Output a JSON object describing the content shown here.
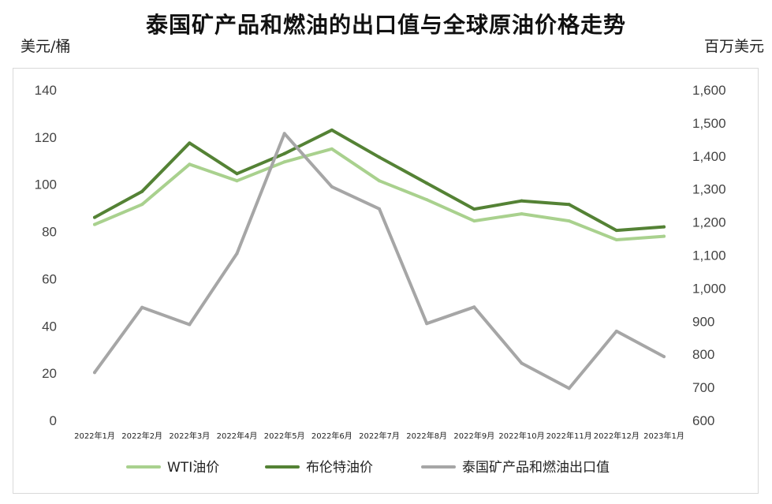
{
  "chart_data": {
    "type": "line",
    "title": "泰国矿产品和燃油的出口值与全球原油价格走势",
    "left_axis_label": "美元/桶",
    "right_axis_label": "百万美元",
    "categories": [
      "2022年1月",
      "2022年2月",
      "2022年3月",
      "2022年4月",
      "2022年5月",
      "2022年6月",
      "2022年7月",
      "2022年8月",
      "2022年9月",
      "2022年10月",
      "2022年11月",
      "2022年12月",
      "2023年1月"
    ],
    "ylim_left": [
      0,
      140
    ],
    "yticks_left": [
      "0",
      "20",
      "40",
      "60",
      "80",
      "100",
      "120",
      "140"
    ],
    "ylim_right": [
      600,
      1600
    ],
    "yticks_right": [
      "600",
      "700",
      "800",
      "900",
      "1,000",
      "1,100",
      "1,200",
      "1,300",
      "1,400",
      "1,500",
      "1,600"
    ],
    "grid": false,
    "legend_position": "bottom",
    "series": [
      {
        "name": "WTI油价",
        "axis": "left",
        "color": "#a9d18e",
        "values": [
          83,
          91.5,
          108.5,
          101.5,
          109.5,
          115,
          101.5,
          93.5,
          84.5,
          87.5,
          84.5,
          76.5,
          78
        ]
      },
      {
        "name": "布伦特油价",
        "axis": "left",
        "color": "#548235",
        "values": [
          86,
          97,
          117.5,
          104.5,
          113,
          123,
          111.5,
          100.5,
          89.5,
          93,
          91.5,
          80.5,
          82
        ]
      },
      {
        "name": "泰国矿产品和燃油出口值",
        "axis": "right",
        "color": "#a6a6a6",
        "values": [
          745,
          942,
          890,
          1105,
          1468,
          1307,
          1240,
          893,
          943,
          773,
          697,
          870,
          793
        ]
      }
    ]
  }
}
